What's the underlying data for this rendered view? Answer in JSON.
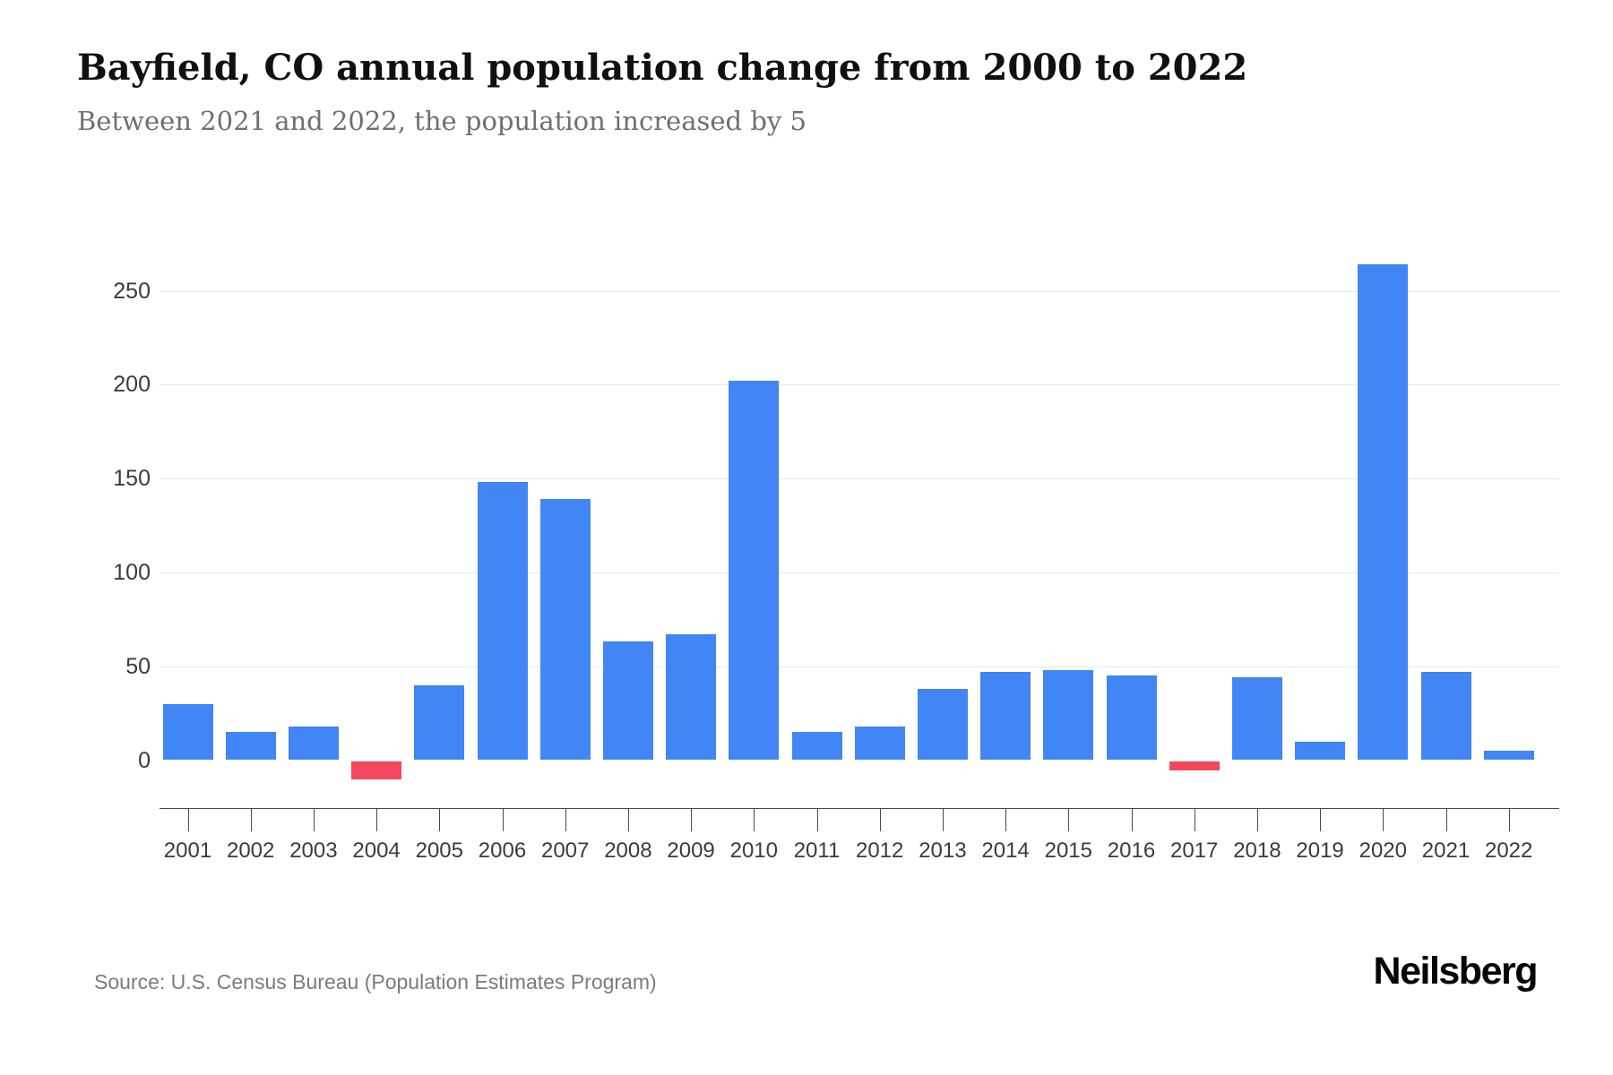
{
  "title": "Bayfield, CO annual population change from 2000 to 2022",
  "subtitle": "Between 2021 and 2022, the population increased by 5",
  "source": "Source: U.S. Census Bureau (Population Estimates Program)",
  "brand": "Neilsberg",
  "chart_data": {
    "type": "bar",
    "title": "Bayfield, CO annual population change from 2000 to 2022",
    "subtitle": "Between 2021 and 2022, the population increased by 5",
    "categories": [
      "2001",
      "2002",
      "2003",
      "2004",
      "2005",
      "2006",
      "2007",
      "2008",
      "2009",
      "2010",
      "2011",
      "2012",
      "2013",
      "2014",
      "2015",
      "2016",
      "2017",
      "2018",
      "2019",
      "2020",
      "2021",
      "2022"
    ],
    "values": [
      30,
      15,
      18,
      -10,
      40,
      148,
      139,
      63,
      67,
      202,
      15,
      18,
      38,
      47,
      48,
      45,
      -5,
      44,
      10,
      264,
      47,
      5
    ],
    "xlabel": "",
    "ylabel": "",
    "y_ticks": [
      0,
      50,
      100,
      150,
      200,
      250
    ],
    "ylim": [
      -26,
      280
    ],
    "grid": true,
    "legend_position": "none",
    "positive_color": "#4285f4",
    "negative_color": "#f2485e",
    "gridline_color": "#e7e7e7",
    "axis_color": "#4a4a4a"
  }
}
